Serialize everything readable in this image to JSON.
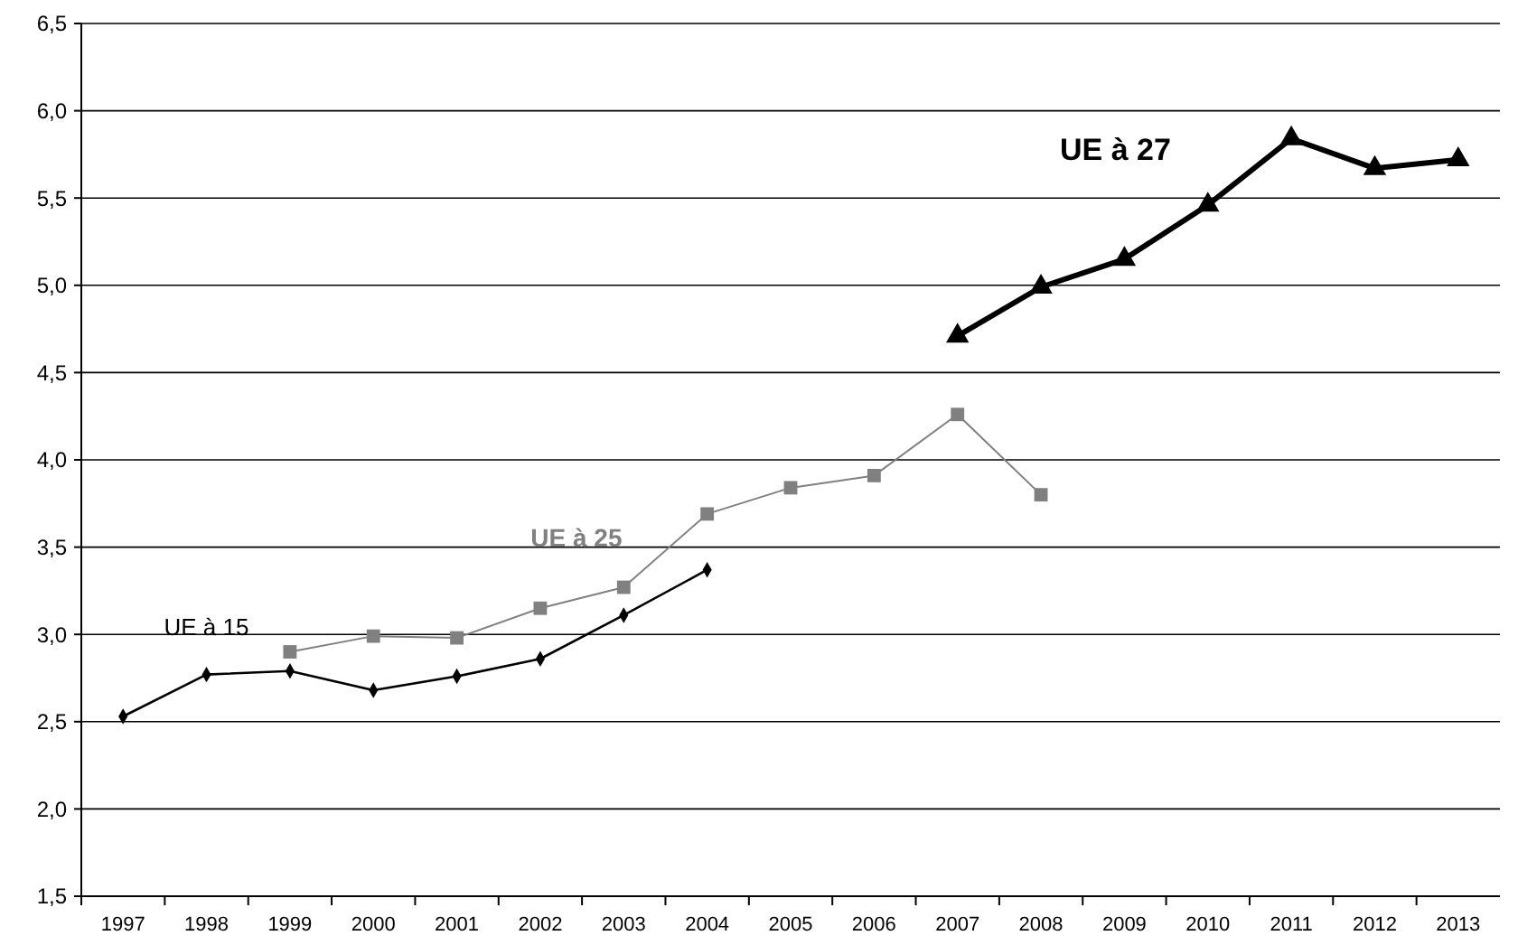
{
  "chart_data": {
    "type": "line",
    "categories": [
      "1997",
      "1998",
      "1999",
      "2000",
      "2001",
      "2002",
      "2003",
      "2004",
      "2005",
      "2006",
      "2007",
      "2008",
      "2009",
      "2010",
      "2011",
      "2012",
      "2013"
    ],
    "series": [
      {
        "name": "UE à 15",
        "color": "#000000",
        "marker": "diamond",
        "values": [
          2.53,
          2.77,
          2.79,
          2.68,
          2.76,
          2.86,
          3.11,
          3.37,
          null,
          null,
          null,
          null,
          null,
          null,
          null,
          null,
          null
        ]
      },
      {
        "name": "UE à 25",
        "color": "#808080",
        "marker": "square",
        "values": [
          null,
          null,
          2.9,
          2.99,
          2.98,
          3.15,
          3.27,
          3.69,
          3.84,
          3.91,
          4.26,
          3.8,
          null,
          null,
          null,
          null,
          null
        ]
      },
      {
        "name": "UE à 27",
        "color": "#000000",
        "marker": "triangle",
        "values": [
          null,
          null,
          null,
          null,
          null,
          null,
          null,
          null,
          null,
          null,
          4.71,
          4.99,
          5.15,
          5.46,
          5.84,
          5.67,
          5.72
        ]
      }
    ],
    "ylim": [
      1.5,
      6.5
    ],
    "yticks": [
      {
        "value": 1.5,
        "label": "1,5"
      },
      {
        "value": 2,
        "label": "2,0"
      },
      {
        "value": 2.5,
        "label": "2,5"
      },
      {
        "value": 3,
        "label": "3,0"
      },
      {
        "value": 3.5,
        "label": "3,5"
      },
      {
        "value": 4,
        "label": "4,0"
      },
      {
        "value": 4.5,
        "label": "4,5"
      },
      {
        "value": 5,
        "label": "5,0"
      },
      {
        "value": 5.5,
        "label": "5,5"
      },
      {
        "value": 6,
        "label": "6,0"
      },
      {
        "value": 6.5,
        "label": "6,5"
      }
    ],
    "grid": "y"
  }
}
